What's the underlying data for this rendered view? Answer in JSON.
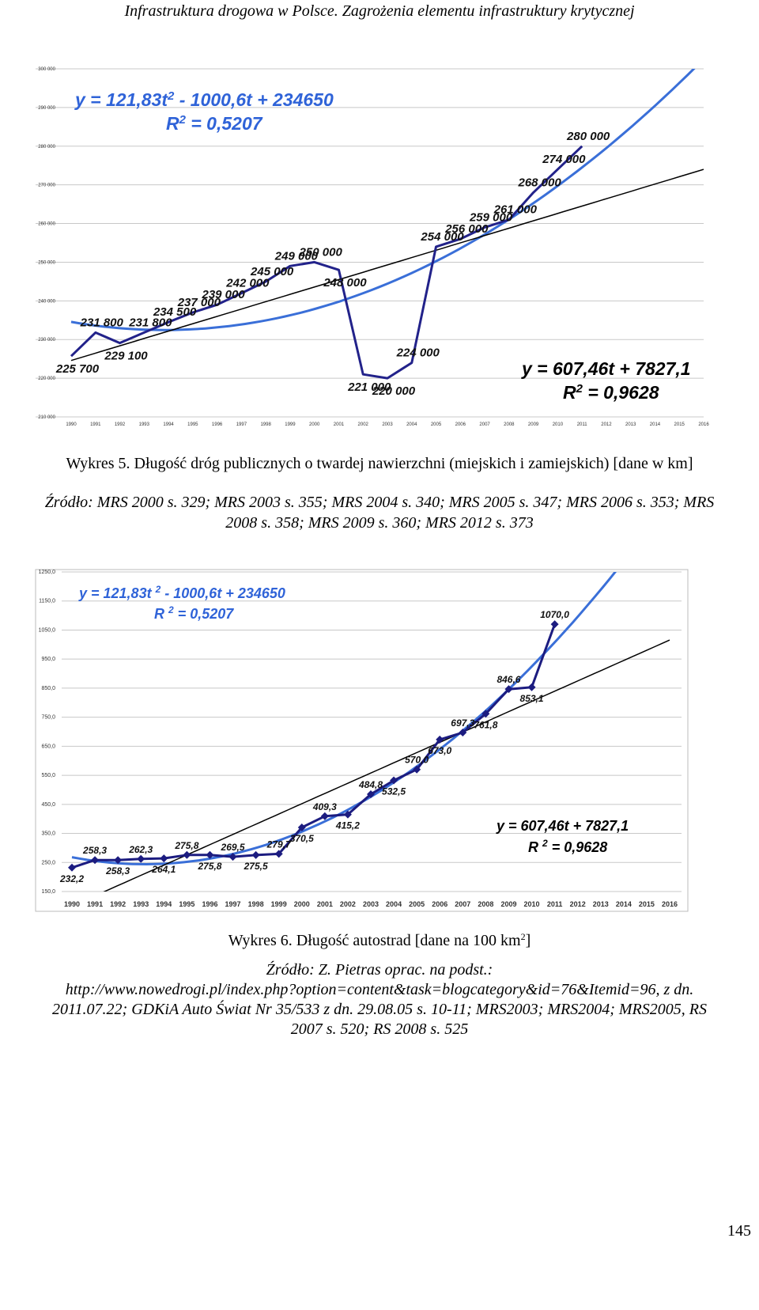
{
  "header": "Infrastruktura drogowa w Polsce. Zagrożenia elementu infrastruktury krytycznej",
  "figures": [
    {
      "caption_parts": [
        "Wykres 5. Długość dróg publicznych o twardej nawierzchni (miejskich i zamiejskich) [dane w km]"
      ],
      "source_lines": [
        "Źródło: MRS 2000 s. 329; MRS 2003 s. 355; MRS 2004 s. 340; MRS 2005 s. 347; MRS 2006 s. 353; MRS",
        "2008 s. 358; MRS 2009 s. 360; MRS 2012 s. 373"
      ]
    },
    {
      "caption_parts": [
        "Wykres 6. Długość autostrad [dane na 100 km",
        "2",
        "]"
      ],
      "source_lines": [
        "Źródło: Z. Pietras oprac. na podst.:",
        "http://www.nowedrogi.pl/index.php?option=content&task=blogcategory&id=76&Itemid=96, z dn.",
        "2011.07.22; GDKiA Auto Świat Nr 35/533 z dn. 29.08.05 s. 10-11; MRS2003; MRS2004; MRS2005, RS",
        "2007 s. 520; RS 2008 s. 525"
      ]
    }
  ],
  "page_number": "145",
  "chart_data": [
    {
      "type": "line",
      "x": [
        1990,
        1991,
        1992,
        1993,
        1994,
        1995,
        1996,
        1997,
        1998,
        1999,
        2000,
        2001,
        2002,
        2003,
        2004,
        2005,
        2006,
        2007,
        2008,
        2009,
        2010,
        2011,
        2012,
        2013,
        2014,
        2015,
        2016
      ],
      "xlim": [
        1990,
        2016
      ],
      "xticks": [
        1990,
        1991,
        1992,
        1993,
        1994,
        1995,
        1996,
        1997,
        1998,
        1999,
        2000,
        2001,
        2002,
        2003,
        2004,
        2005,
        2006,
        2007,
        2008,
        2009,
        2010,
        2011,
        2012,
        2013,
        2014,
        2015,
        2016
      ],
      "ylim": [
        210000,
        300000
      ],
      "yticks": [
        {
          "value": 210000,
          "label": "210 000"
        },
        {
          "value": 220000,
          "label": "220 000"
        },
        {
          "value": 230000,
          "label": "230 000"
        },
        {
          "value": 240000,
          "label": "240 000"
        },
        {
          "value": 250000,
          "label": "250 000"
        },
        {
          "value": 260000,
          "label": "260 000"
        },
        {
          "value": 270000,
          "label": "270 000"
        },
        {
          "value": 280000,
          "label": "280 000"
        },
        {
          "value": 290000,
          "label": "290 000"
        },
        {
          "value": 300000,
          "label": "300 000"
        }
      ],
      "grid": true,
      "markers": "none",
      "series": [
        {
          "color": "#22228a",
          "values": [
            225700,
            231800,
            229100,
            231800,
            234500,
            237000,
            239000,
            242000,
            245000,
            249000,
            250000,
            248000,
            221000,
            220000,
            224000,
            254000,
            256000,
            259000,
            261000,
            268000,
            274000,
            280000,
            null,
            null,
            null,
            null,
            null
          ],
          "value_labels": [
            "225 700",
            "231 800",
            "229 100",
            "231 800",
            "234 500",
            "237 000",
            "239 000",
            "242 000",
            "245 000",
            "249 000",
            "250 000",
            "248 000",
            "221 000",
            "220 000",
            "224 000",
            "254 000",
            "256 000",
            "259 000",
            "261 000",
            "268 000",
            "274 000",
            "280 000",
            null,
            null,
            null,
            null,
            null
          ]
        }
      ],
      "trendlines": [
        {
          "kind": "poly2",
          "color": "#3a6fd8"
        },
        {
          "kind": "linear",
          "color": "#000000"
        }
      ],
      "annotations": [
        {
          "parts": [
            "y = 121,83t",
            "2",
            " - 1000,6t + 234650"
          ],
          "color": "#2f63d8"
        },
        {
          "parts": [
            "R",
            "2",
            " = 0,5207"
          ],
          "color": "#2f63d8"
        },
        {
          "parts": [
            "y = 607,46t + 7827,1"
          ],
          "color": "#000000"
        },
        {
          "parts": [
            "R",
            "2",
            " = 0,9628"
          ],
          "color": "#000000"
        }
      ]
    },
    {
      "type": "line",
      "x": [
        1990,
        1991,
        1992,
        1993,
        1994,
        1995,
        1996,
        1997,
        1998,
        1999,
        2000,
        2001,
        2002,
        2003,
        2004,
        2005,
        2006,
        2007,
        2008,
        2009,
        2010,
        2011,
        2012,
        2013,
        2014,
        2015,
        2016
      ],
      "xlim": [
        1990,
        2016
      ],
      "xticks": [
        1990,
        1991,
        1992,
        1993,
        1994,
        1995,
        1996,
        1997,
        1998,
        1999,
        2000,
        2001,
        2002,
        2003,
        2004,
        2005,
        2006,
        2007,
        2008,
        2009,
        2010,
        2011,
        2012,
        2013,
        2014,
        2015,
        2016
      ],
      "ylim": [
        150,
        1250
      ],
      "yticks": [
        {
          "value": 150,
          "label": "150,0"
        },
        {
          "value": 250,
          "label": "250,0"
        },
        {
          "value": 350,
          "label": "350,0"
        },
        {
          "value": 450,
          "label": "450,0"
        },
        {
          "value": 550,
          "label": "550,0"
        },
        {
          "value": 650,
          "label": "650,0"
        },
        {
          "value": 750,
          "label": "750,0"
        },
        {
          "value": 850,
          "label": "850,0"
        },
        {
          "value": 950,
          "label": "950,0"
        },
        {
          "value": 1050,
          "label": "1050,0"
        },
        {
          "value": 1150,
          "label": "1150,0"
        },
        {
          "value": 1250,
          "label": "1250,0"
        }
      ],
      "grid": true,
      "markers": "diamond",
      "series": [
        {
          "color": "#1c1c80",
          "values": [
            232.2,
            258.3,
            258.3,
            262.3,
            264.1,
            275.8,
            275.8,
            269.5,
            275.5,
            279.7,
            370.5,
            409.3,
            415.2,
            484.8,
            532.5,
            570.0,
            673.0,
            697.3,
            761.8,
            846.6,
            853.1,
            1070.0,
            null,
            null,
            null,
            null,
            null
          ],
          "value_labels": [
            "232,2",
            "258,3",
            "258,3",
            "262,3",
            "264,1",
            "275,8",
            "275,8",
            "269,5",
            "275,5",
            "279,7",
            "370,5",
            "409,3",
            "415,2",
            "484,8",
            "532,5",
            "570,0",
            "673,0",
            "697,3",
            "761,8",
            "846,6",
            "853,1",
            "1070,0",
            null,
            null,
            null,
            null,
            null
          ]
        }
      ],
      "trendlines": [
        {
          "kind": "poly2",
          "color": "#3a6fd8"
        },
        {
          "kind": "linear",
          "color": "#000000"
        }
      ],
      "annotations": [
        {
          "parts": [
            "y = 121,83t ",
            "2",
            " - 1000,6t + 234650"
          ],
          "color": "#2f63d8"
        },
        {
          "parts": [
            "R ",
            "2",
            " = 0,5207"
          ],
          "color": "#2f63d8"
        },
        {
          "parts": [
            "y = 607,46t + 7827,1"
          ],
          "color": "#000000"
        },
        {
          "parts": [
            "R ",
            "2",
            " = 0,9628"
          ],
          "color": "#000000"
        }
      ]
    }
  ]
}
